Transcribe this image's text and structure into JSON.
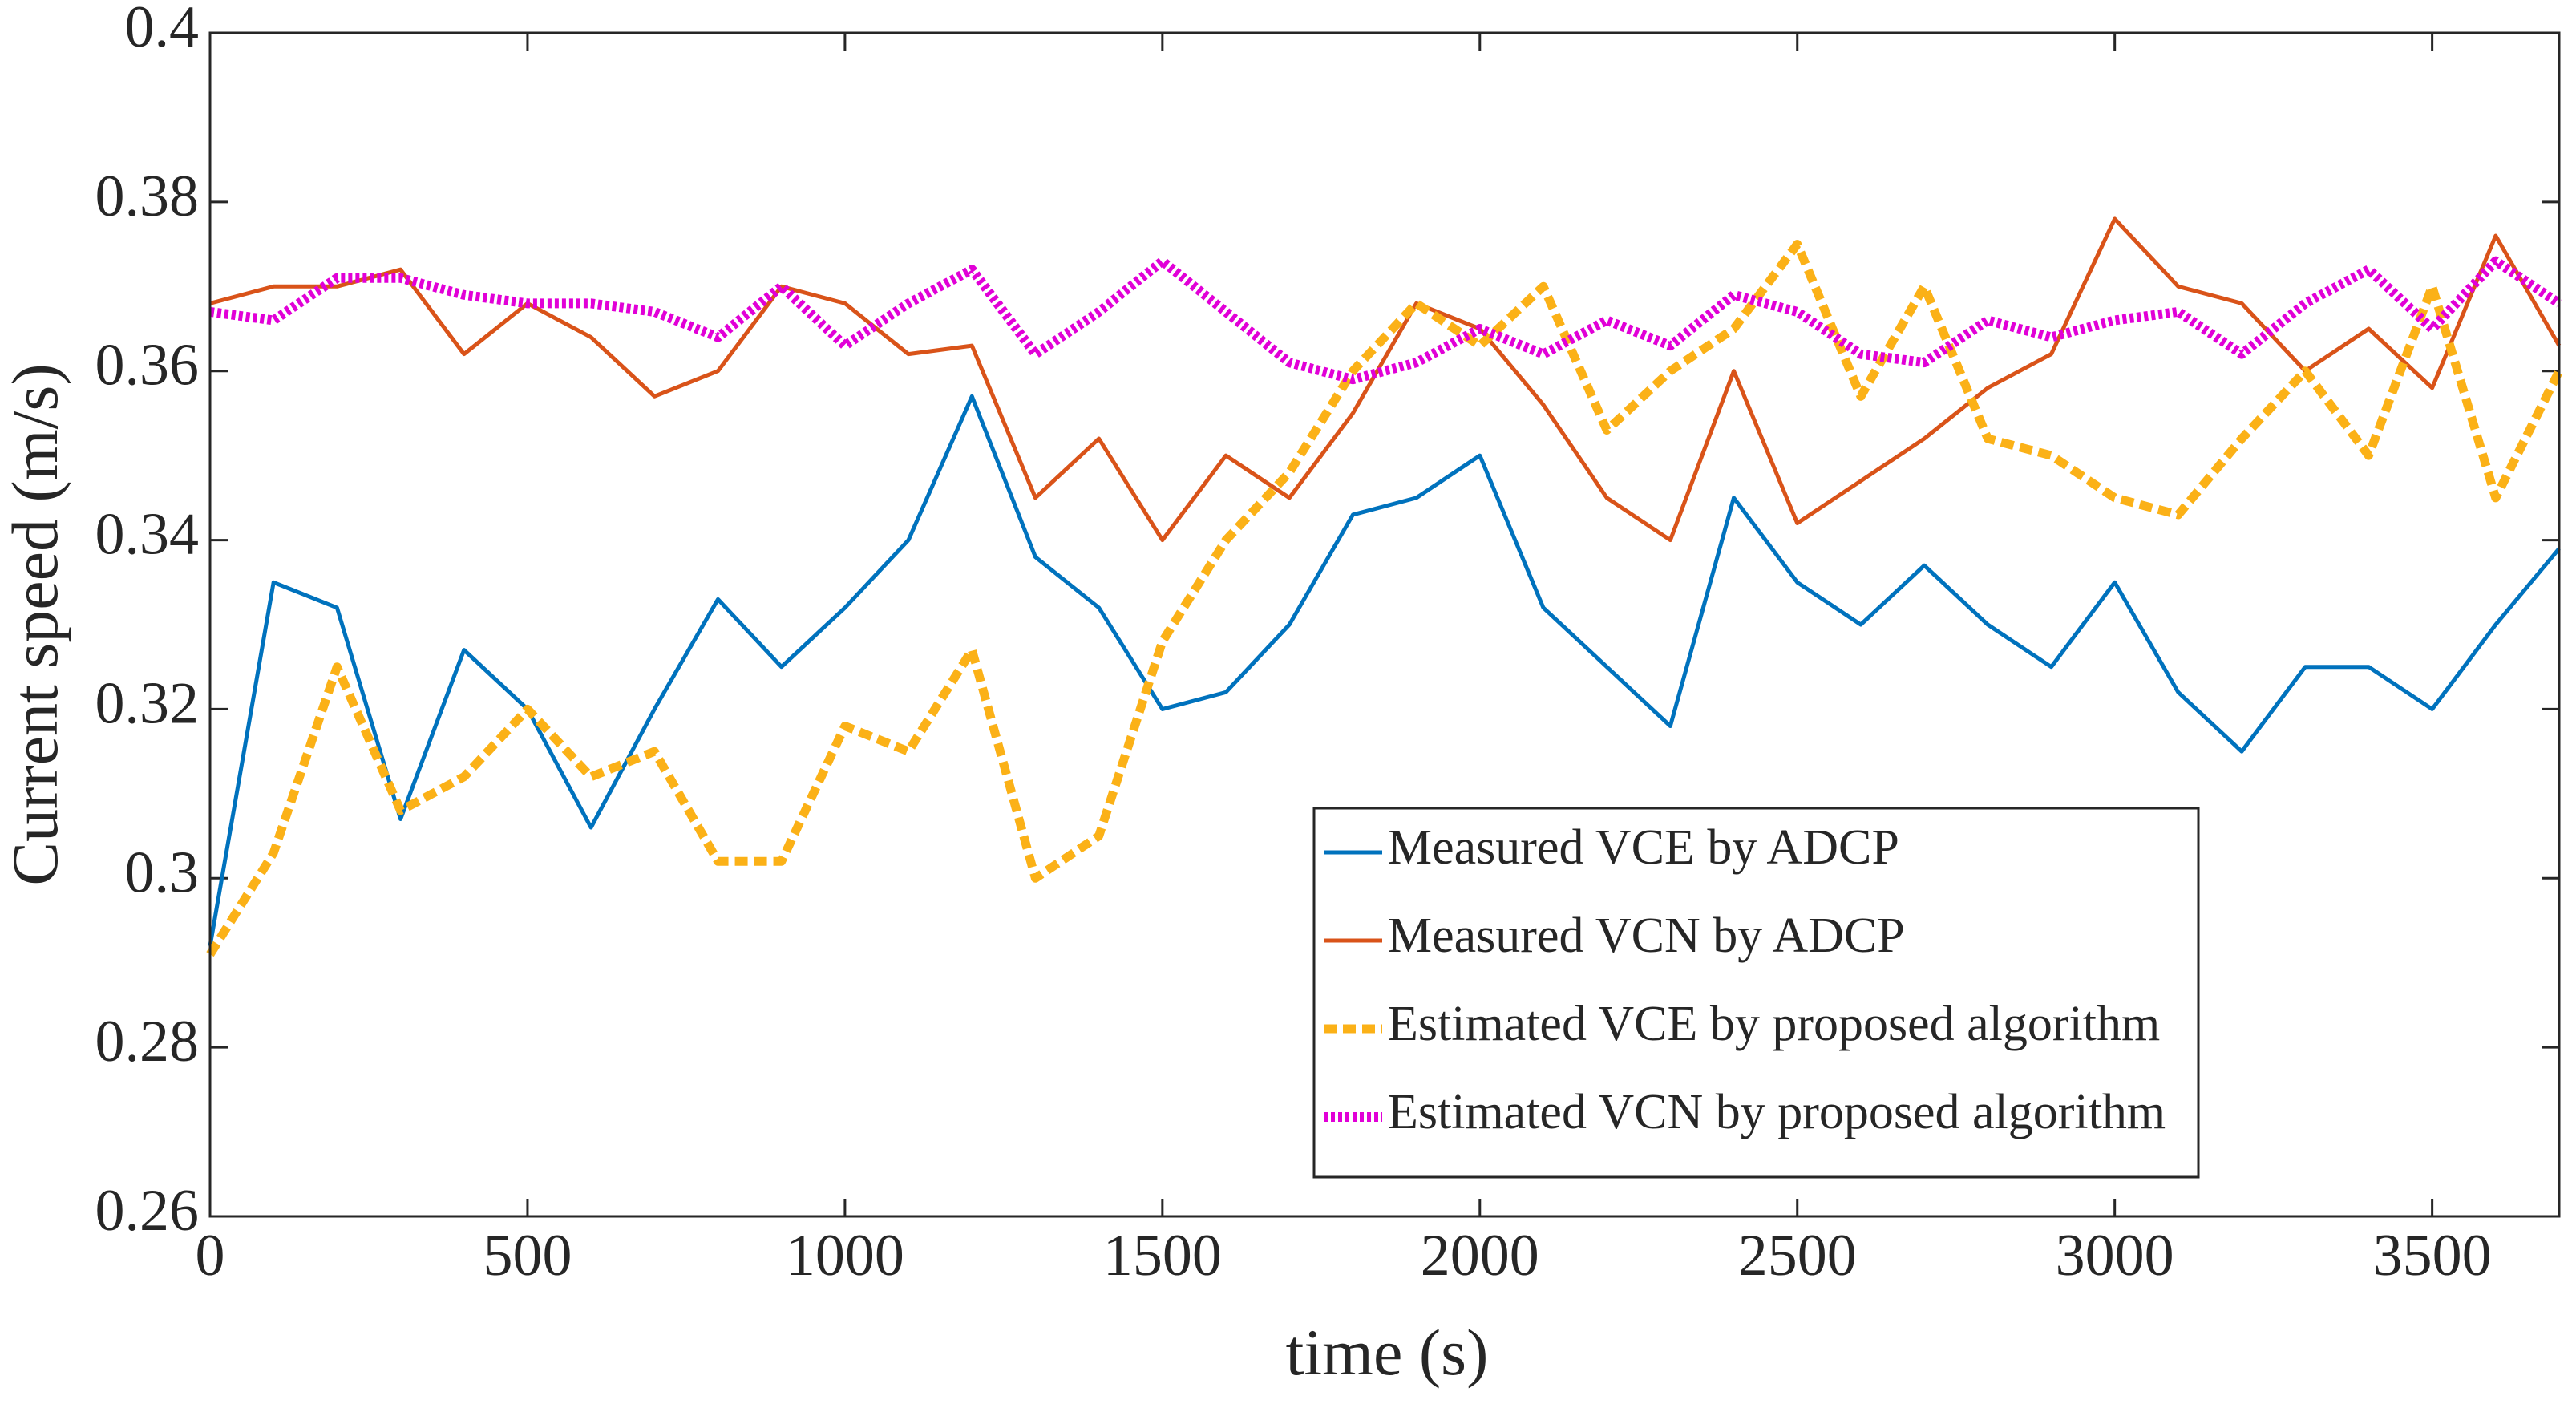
{
  "chart_data": {
    "type": "line",
    "xlabel": "time  (s)",
    "ylabel": "Current speed (m/s)",
    "x": [
      0,
      100,
      200,
      300,
      400,
      500,
      600,
      700,
      800,
      900,
      1000,
      1100,
      1200,
      1300,
      1400,
      1500,
      1600,
      1700,
      1800,
      1900,
      2000,
      2100,
      2200,
      2300,
      2400,
      2500,
      2600,
      2700,
      2800,
      2900,
      3000,
      3100,
      3200,
      3300,
      3400,
      3500,
      3600,
      3700
    ],
    "series": [
      {
        "name": "Measured VCE by ADCP",
        "color": "#0072bd",
        "style": "solid",
        "values": [
          0.292,
          0.335,
          0.332,
          0.307,
          0.327,
          0.32,
          0.306,
          0.32,
          0.333,
          0.325,
          0.332,
          0.34,
          0.357,
          0.338,
          0.332,
          0.32,
          0.322,
          0.33,
          0.343,
          0.345,
          0.35,
          0.332,
          0.325,
          0.318,
          0.345,
          0.335,
          0.33,
          0.337,
          0.33,
          0.325,
          0.335,
          0.322,
          0.315,
          0.325,
          0.325,
          0.32,
          0.33,
          0.339
        ]
      },
      {
        "name": "Measured VCN by ADCP",
        "color": "#d95319",
        "style": "solid",
        "values": [
          0.368,
          0.37,
          0.37,
          0.372,
          0.362,
          0.368,
          0.364,
          0.357,
          0.36,
          0.37,
          0.368,
          0.362,
          0.363,
          0.345,
          0.352,
          0.34,
          0.35,
          0.345,
          0.355,
          0.368,
          0.365,
          0.356,
          0.345,
          0.34,
          0.36,
          0.342,
          0.347,
          0.352,
          0.358,
          0.362,
          0.378,
          0.37,
          0.368,
          0.36,
          0.365,
          0.358,
          0.376,
          0.363
        ]
      },
      {
        "name": "Estimated VCE by proposed algorithm",
        "color": "#fbb117",
        "style": "dashed",
        "values": [
          0.291,
          0.303,
          0.325,
          0.308,
          0.312,
          0.32,
          0.312,
          0.315,
          0.302,
          0.302,
          0.318,
          0.315,
          0.327,
          0.3,
          0.305,
          0.328,
          0.34,
          0.348,
          0.36,
          0.368,
          0.363,
          0.37,
          0.353,
          0.36,
          0.365,
          0.375,
          0.357,
          0.37,
          0.352,
          0.35,
          0.345,
          0.343,
          0.352,
          0.36,
          0.35,
          0.37,
          0.345,
          0.36
        ]
      },
      {
        "name": "Estimated VCN by proposed algorithm",
        "color": "#e100d7",
        "style": "dotted",
        "values": [
          0.367,
          0.366,
          0.371,
          0.371,
          0.369,
          0.368,
          0.368,
          0.367,
          0.364,
          0.37,
          0.363,
          0.368,
          0.372,
          0.362,
          0.367,
          0.373,
          0.367,
          0.361,
          0.359,
          0.361,
          0.365,
          0.362,
          0.366,
          0.363,
          0.369,
          0.367,
          0.362,
          0.361,
          0.366,
          0.364,
          0.366,
          0.367,
          0.362,
          0.368,
          0.372,
          0.365,
          0.373,
          0.368
        ]
      }
    ],
    "xlim": [
      0,
      3700
    ],
    "xticks": [
      0,
      500,
      1000,
      1500,
      2000,
      2500,
      3000,
      3500
    ],
    "ylim": [
      0.26,
      0.4
    ],
    "yticks": [
      0.26,
      0.28,
      0.3,
      0.32,
      0.34,
      0.36,
      0.38,
      0.4
    ],
    "legend": "lower right",
    "grid": false
  }
}
